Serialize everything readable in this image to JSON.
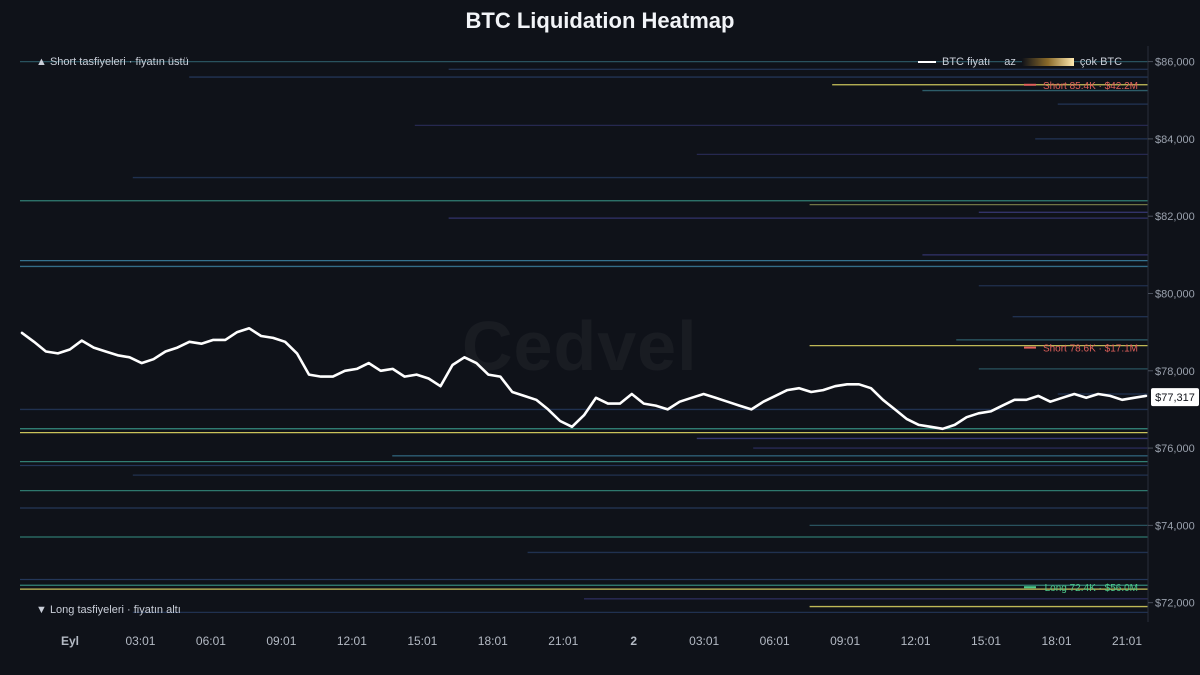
{
  "chart_data": {
    "type": "heatmap",
    "title": "BTC Liquidation Heatmap",
    "y_ticks": [
      "$86,000",
      "$84,000",
      "$82,000",
      "$80,000",
      "$78,000",
      "$76,000",
      "$74,000",
      "$72,000"
    ],
    "ylim": [
      71500,
      86300
    ],
    "x_ticks": [
      "Eyl",
      "03:01",
      "06:01",
      "09:01",
      "12:01",
      "15:01",
      "18:01",
      "21:01",
      "2",
      "03:01",
      "06:01",
      "09:01",
      "12:01",
      "15:01",
      "18:01",
      "21:01"
    ],
    "current_price": 77317,
    "current_price_label": "$77,317",
    "series": [
      {
        "name": "BTC fiyatı",
        "values": [
          78980,
          78750,
          78500,
          78450,
          78550,
          78780,
          78600,
          78500,
          78400,
          78350,
          78200,
          78300,
          78500,
          78600,
          78750,
          78700,
          78800,
          78800,
          79000,
          79100,
          78900,
          78850,
          78750,
          78450,
          77900,
          77850,
          77850,
          78000,
          78050,
          78200,
          78000,
          78050,
          77850,
          77900,
          77800,
          77600,
          78150,
          78350,
          78200,
          77900,
          77850,
          77450,
          77350,
          77250,
          77000,
          76700,
          76550,
          76850,
          77300,
          77150,
          77150,
          77400,
          77150,
          77100,
          77000,
          77200,
          77300,
          77400,
          77300,
          77200,
          77100,
          77000,
          77200,
          77350,
          77500,
          77550,
          77450,
          77500,
          77600,
          77650,
          77650,
          77550,
          77250,
          77000,
          76750,
          76600,
          76550,
          76500,
          76600,
          76800,
          76900,
          76950,
          77100,
          77250,
          77250,
          77350,
          77200,
          77300,
          77400,
          77300,
          77400,
          77350,
          77250,
          77300,
          77350
        ]
      }
    ],
    "legend": {
      "line": "BTC fiyatı",
      "low": "az",
      "high": "çok BTC"
    },
    "zones": {
      "short": "▲ Short tasfiyeleri · fiyatın üstü",
      "long": "▼ Long tasfiyeleri · fiyatın altı"
    },
    "annotations": [
      {
        "text": "Short 85.4K · $42.2M",
        "price": 85400,
        "color": "#e0605a"
      },
      {
        "text": "Short 78.6K · $17.1M",
        "price": 78600,
        "color": "#e0605a"
      },
      {
        "text": "Long 72.4K · $56.0M",
        "price": 72400,
        "color": "#4cc98a"
      }
    ],
    "liquidation_levels": [
      {
        "price": 86000,
        "start": 0.0,
        "intensity": 0.25,
        "color": "#3a7d8c"
      },
      {
        "price": 85800,
        "start": 0.38,
        "intensity": 0.2,
        "color": "#2f4b7d"
      },
      {
        "price": 85600,
        "start": 0.15,
        "intensity": 0.25,
        "color": "#2f4b7d"
      },
      {
        "price": 85400,
        "start": 0.72,
        "intensity": 0.75,
        "color": "#c9c25a"
      },
      {
        "price": 85250,
        "start": 0.8,
        "intensity": 0.35,
        "color": "#3a7d8c"
      },
      {
        "price": 84900,
        "start": 0.92,
        "intensity": 0.25,
        "color": "#2f4b7d"
      },
      {
        "price": 84350,
        "start": 0.35,
        "intensity": 0.2,
        "color": "#3a3a7d"
      },
      {
        "price": 84000,
        "start": 0.9,
        "intensity": 0.25,
        "color": "#2f4b7d"
      },
      {
        "price": 83600,
        "start": 0.6,
        "intensity": 0.2,
        "color": "#3a3a7d"
      },
      {
        "price": 83000,
        "start": 0.1,
        "intensity": 0.2,
        "color": "#2f4b7d"
      },
      {
        "price": 82400,
        "start": 0.0,
        "intensity": 0.45,
        "color": "#3a9a8a"
      },
      {
        "price": 82300,
        "start": 0.7,
        "intensity": 0.35,
        "color": "#9aa05a"
      },
      {
        "price": 82100,
        "start": 0.85,
        "intensity": 0.25,
        "color": "#4a4aa0"
      },
      {
        "price": 81950,
        "start": 0.38,
        "intensity": 0.25,
        "color": "#4a4aa0"
      },
      {
        "price": 81000,
        "start": 0.8,
        "intensity": 0.25,
        "color": "#4a4aa0"
      },
      {
        "price": 80850,
        "start": 0.0,
        "intensity": 0.55,
        "color": "#3a7d9c"
      },
      {
        "price": 80700,
        "start": 0.0,
        "intensity": 0.5,
        "color": "#3a7d9c"
      },
      {
        "price": 80200,
        "start": 0.85,
        "intensity": 0.2,
        "color": "#2f4b7d"
      },
      {
        "price": 79400,
        "start": 0.88,
        "intensity": 0.2,
        "color": "#2f4b7d"
      },
      {
        "price": 78800,
        "start": 0.83,
        "intensity": 0.35,
        "color": "#3a7d8c"
      },
      {
        "price": 78650,
        "start": 0.7,
        "intensity": 0.6,
        "color": "#c9c25a"
      },
      {
        "price": 78050,
        "start": 0.85,
        "intensity": 0.25,
        "color": "#3a7d8c"
      },
      {
        "price": 77400,
        "start": 0.92,
        "intensity": 0.2,
        "color": "#2f4b7d"
      },
      {
        "price": 77000,
        "start": 0.0,
        "intensity": 0.2,
        "color": "#2f4b7d"
      },
      {
        "price": 76500,
        "start": 0.0,
        "intensity": 0.55,
        "color": "#3a9a8a"
      },
      {
        "price": 76400,
        "start": 0.0,
        "intensity": 0.7,
        "color": "#c9c25a"
      },
      {
        "price": 76250,
        "start": 0.6,
        "intensity": 0.3,
        "color": "#4a4aa0"
      },
      {
        "price": 76000,
        "start": 0.65,
        "intensity": 0.25,
        "color": "#3a3a7d"
      },
      {
        "price": 75800,
        "start": 0.33,
        "intensity": 0.35,
        "color": "#3a7d9c"
      },
      {
        "price": 75650,
        "start": 0.0,
        "intensity": 0.45,
        "color": "#3a9a8a"
      },
      {
        "price": 75550,
        "start": 0.0,
        "intensity": 0.3,
        "color": "#2f4b7d"
      },
      {
        "price": 75300,
        "start": 0.1,
        "intensity": 0.2,
        "color": "#2f4b7d"
      },
      {
        "price": 74900,
        "start": 0.0,
        "intensity": 0.4,
        "color": "#3a9a8a"
      },
      {
        "price": 74450,
        "start": 0.0,
        "intensity": 0.3,
        "color": "#2f4b7d"
      },
      {
        "price": 74000,
        "start": 0.7,
        "intensity": 0.25,
        "color": "#3a7d8c"
      },
      {
        "price": 73700,
        "start": 0.0,
        "intensity": 0.4,
        "color": "#3a9a8a"
      },
      {
        "price": 73300,
        "start": 0.45,
        "intensity": 0.2,
        "color": "#2f4b7d"
      },
      {
        "price": 72600,
        "start": 0.0,
        "intensity": 0.3,
        "color": "#2f4b7d"
      },
      {
        "price": 72450,
        "start": 0.0,
        "intensity": 0.5,
        "color": "#3a9a8a"
      },
      {
        "price": 72350,
        "start": 0.0,
        "intensity": 0.75,
        "color": "#c9c25a"
      },
      {
        "price": 72100,
        "start": 0.5,
        "intensity": 0.3,
        "color": "#3a3a7d"
      },
      {
        "price": 71900,
        "start": 0.7,
        "intensity": 0.6,
        "color": "#c9c25a"
      },
      {
        "price": 71750,
        "start": 0.1,
        "intensity": 0.2,
        "color": "#2f4b7d"
      }
    ]
  },
  "watermark": "Cedvel"
}
